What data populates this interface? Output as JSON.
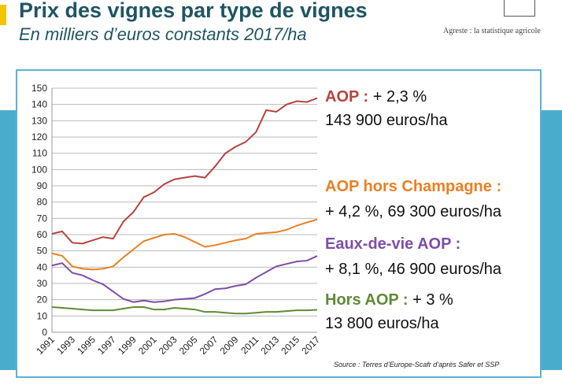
{
  "header": {
    "title": "Prix des vignes par type de vignes",
    "subtitle": "En milliers d’euros constants 2017/ha",
    "agency": "Agreste : la statistique agricole"
  },
  "annotations": [
    {
      "head": "AOP :",
      "rest": " + 2,3 %",
      "line2": "143 900 euros/ha",
      "color": "#b5443f"
    },
    {
      "head": "AOP hors Champagne :",
      "rest": "",
      "line2": "+ 4,2 %, 69 300 euros/ha",
      "color": "#e98024"
    },
    {
      "head": "Eaux-de-vie AOP :",
      "rest": "",
      "line2": "+ 8,1 %, 46 900 euros/ha",
      "color": "#7d4ea8"
    },
    {
      "head": "Hors AOP :",
      "rest": " + 3 %",
      "line2": "13 800 euros/ha",
      "color": "#5e8b35"
    }
  ],
  "source": "Source : Terres d’Europe-Scafr d’après Safer et SSP",
  "chart_data": {
    "type": "line",
    "ylim": [
      0,
      150
    ],
    "grid": true,
    "x": [
      1991,
      1992,
      1993,
      1994,
      1995,
      1996,
      1997,
      1998,
      1999,
      2000,
      2001,
      2002,
      2003,
      2004,
      2005,
      2006,
      2007,
      2008,
      2009,
      2010,
      2011,
      2012,
      2013,
      2014,
      2015,
      2016,
      2017
    ],
    "xticks": [
      "1991",
      "1993",
      "1995",
      "1997",
      "1999",
      "2001",
      "2003",
      "2005",
      "2007",
      "2009",
      "2011",
      "2013",
      "2015",
      "2017"
    ],
    "yticks": [
      "0",
      "10",
      "20",
      "30",
      "40",
      "50",
      "60",
      "70",
      "80",
      "90",
      "100",
      "110",
      "120",
      "130",
      "140",
      "150"
    ],
    "series": [
      {
        "color": "#b5443f",
        "values": [
          60.5,
          62,
          55,
          54.5,
          56.5,
          58.5,
          57.5,
          68,
          74,
          83,
          86,
          91,
          94,
          95,
          96,
          95,
          102,
          110,
          114,
          117,
          123,
          136.5,
          135.5,
          140,
          142,
          141.5,
          143.9
        ]
      },
      {
        "color": "#e98024",
        "values": [
          48.5,
          47,
          40.5,
          39,
          38.5,
          39,
          40.5,
          46,
          51,
          56,
          58,
          60,
          60.5,
          58.5,
          55.5,
          52.5,
          53.5,
          55,
          56.5,
          57.5,
          60.5,
          61,
          61.5,
          63,
          65.5,
          67.5,
          69.3
        ]
      },
      {
        "color": "#7d4ea8",
        "values": [
          41,
          42.5,
          36.5,
          35,
          32,
          29.5,
          25,
          20.5,
          18.5,
          19.5,
          18.5,
          19,
          20,
          20.5,
          21,
          23.5,
          26.5,
          27,
          28.5,
          29.5,
          33.5,
          37,
          40.5,
          42,
          43.5,
          44,
          46.9
        ]
      },
      {
        "color": "#5e8b35",
        "values": [
          15.5,
          15,
          14.5,
          14,
          13.5,
          13.5,
          13.5,
          14.5,
          15.5,
          15.5,
          14,
          14,
          15,
          14.5,
          14,
          12.5,
          12.5,
          12,
          11.5,
          11.5,
          12,
          12.5,
          12.5,
          13,
          13.5,
          13.5,
          13.8
        ]
      }
    ]
  }
}
